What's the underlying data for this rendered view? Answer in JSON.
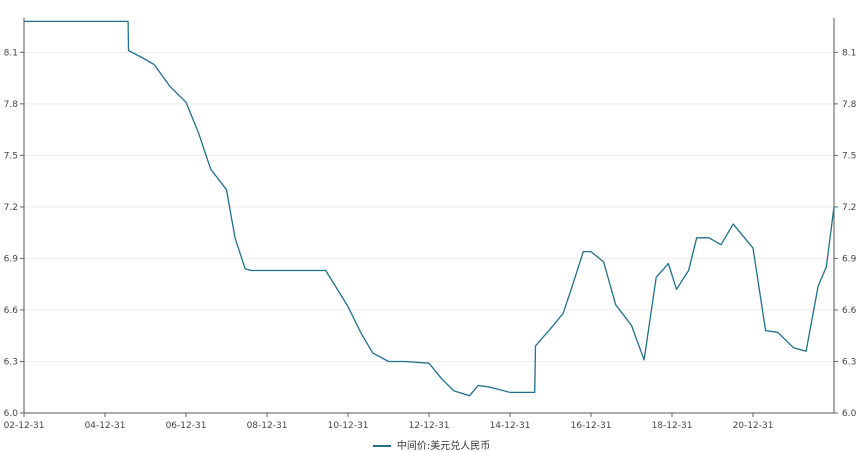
{
  "chart_data": {
    "type": "line",
    "title": "",
    "xlabel": "",
    "ylabel": "",
    "ylim": [
      6.0,
      8.3
    ],
    "y_ticks": [
      6.0,
      6.3,
      6.6,
      6.9,
      7.2,
      7.5,
      7.8,
      8.1
    ],
    "y_tick_labels": [
      "6.0",
      "6.3",
      "6.6",
      "6.9",
      "7.2",
      "7.5",
      "7.8",
      "8.1"
    ],
    "x_tick_labels": [
      "02-12-31",
      "04-12-31",
      "06-12-31",
      "08-12-31",
      "10-12-31",
      "12-12-31",
      "14-12-31",
      "16-12-31",
      "18-12-31",
      "20-12-31"
    ],
    "x_tick_years": [
      2002.99,
      2004.99,
      2006.99,
      2008.99,
      2010.99,
      2012.99,
      2014.99,
      2016.99,
      2018.99,
      2020.99
    ],
    "xlim": [
      2002.99,
      2022.99
    ],
    "grid": "horizontal",
    "legend_position": "bottom",
    "series": [
      {
        "name": "中间价:美元兑人民币",
        "color": "#1f6f8b",
        "x": [
          2002.99,
          2004.5,
          2005.56,
          2005.57,
          2005.9,
          2006.2,
          2006.6,
          2006.99,
          2007.3,
          2007.6,
          2007.99,
          2008.2,
          2008.45,
          2008.6,
          2008.99,
          2010.0,
          2010.44,
          2010.7,
          2010.99,
          2011.3,
          2011.6,
          2011.99,
          2012.4,
          2012.99,
          2013.3,
          2013.6,
          2013.99,
          2014.2,
          2014.5,
          2014.99,
          2015.3,
          2015.6,
          2015.62,
          2015.8,
          2015.99,
          2016.3,
          2016.5,
          2016.8,
          2016.99,
          2017.3,
          2017.6,
          2017.99,
          2018.3,
          2018.6,
          2018.9,
          2019.1,
          2019.4,
          2019.6,
          2019.9,
          2020.2,
          2020.5,
          2020.99,
          2021.3,
          2021.6,
          2021.99,
          2022.3,
          2022.6,
          2022.8,
          2022.99
        ],
        "y": [
          8.28,
          8.28,
          8.28,
          8.11,
          8.07,
          8.03,
          7.9,
          7.81,
          7.63,
          7.42,
          7.3,
          7.02,
          6.84,
          6.83,
          6.83,
          6.83,
          6.83,
          6.73,
          6.62,
          6.47,
          6.35,
          6.3,
          6.3,
          6.29,
          6.2,
          6.13,
          6.1,
          6.16,
          6.15,
          6.12,
          6.12,
          6.12,
          6.39,
          6.44,
          6.49,
          6.58,
          6.72,
          6.94,
          6.94,
          6.88,
          6.63,
          6.51,
          6.31,
          6.79,
          6.87,
          6.72,
          6.83,
          7.02,
          7.02,
          6.98,
          7.1,
          6.96,
          6.48,
          6.47,
          6.38,
          6.36,
          6.74,
          6.85,
          7.2
        ]
      }
    ]
  }
}
